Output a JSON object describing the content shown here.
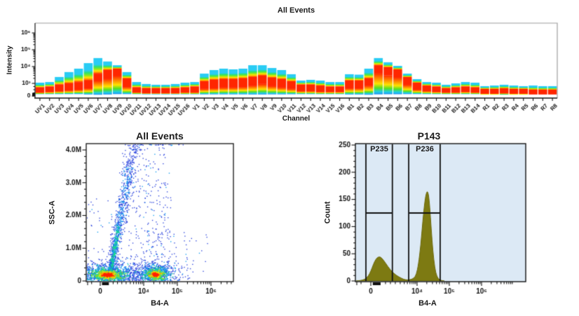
{
  "chart_data": [
    {
      "type": "spectral-band",
      "title": "All Events",
      "xlabel": "Channel",
      "ylabel": "Intensity",
      "yticks": [
        {
          "v": 0,
          "label": "0"
        },
        {
          "v": 1000,
          "label": "10³"
        },
        {
          "v": 10000,
          "label": "10⁴"
        },
        {
          "v": 100000,
          "label": "10⁵"
        },
        {
          "v": 1000000,
          "label": "10⁶"
        }
      ],
      "channels": [
        "UV1",
        "UV2",
        "UV3",
        "UV4",
        "UV5",
        "UV6",
        "UV7",
        "UV8",
        "UV9",
        "UV10",
        "UV11",
        "UV12",
        "UV13",
        "UV14",
        "UV15",
        "UV16",
        "V1",
        "V2",
        "V3",
        "V4",
        "V5",
        "V6",
        "V7",
        "V8",
        "V9",
        "V10",
        "V11",
        "V12",
        "V13",
        "V14",
        "V15",
        "V16",
        "B1",
        "B2",
        "B3",
        "B4",
        "B5",
        "B6",
        "B7",
        "B8",
        "B9",
        "B10",
        "B11",
        "B12",
        "B13",
        "B14",
        "R1",
        "R2",
        "R3",
        "R4",
        "R5",
        "R6",
        "R7",
        "R8"
      ],
      "bands": {
        "hi": [
          1100,
          1200,
          2400,
          4700,
          7500,
          16000,
          32000,
          20000,
          12000,
          4700,
          1200,
          950,
          890,
          890,
          950,
          1100,
          1200,
          3800,
          6200,
          7500,
          6800,
          7500,
          12000,
          12000,
          8200,
          6200,
          3500,
          1470,
          1620,
          1470,
          1200,
          1200,
          3500,
          3300,
          7500,
          32000,
          18000,
          11000,
          3800,
          1780,
          1200,
          1100,
          890,
          1000,
          1200,
          1100,
          780,
          830,
          890,
          830,
          780,
          830,
          780,
          780
        ],
        "red_hi": [
          680,
          750,
          900,
          1000,
          1200,
          1470,
          3800,
          6200,
          7500,
          1960,
          680,
          620,
          620,
          620,
          620,
          680,
          750,
          1330,
          1620,
          1780,
          1780,
          1960,
          2370,
          2870,
          2150,
          1780,
          1330,
          900,
          900,
          830,
          750,
          750,
          1470,
          1470,
          1960,
          12000,
          9100,
          6800,
          2370,
          1100,
          830,
          750,
          620,
          680,
          750,
          680,
          560,
          560,
          610,
          560,
          560,
          500,
          500,
          500
        ],
        "red_lo": [
          280,
          330,
          390,
          440,
          500,
          610,
          1470,
          1960,
          2870,
          720,
          280,
          220,
          220,
          220,
          220,
          280,
          280,
          560,
          610,
          670,
          670,
          720,
          830,
          950,
          780,
          670,
          560,
          390,
          390,
          330,
          330,
          330,
          610,
          610,
          830,
          4200,
          3100,
          2370,
          890,
          500,
          390,
          330,
          280,
          280,
          330,
          280,
          170,
          170,
          220,
          170,
          170,
          120,
          120,
          120
        ],
        "lo": [
          150,
          150,
          150,
          150,
          150,
          120,
          100,
          120,
          150,
          150,
          150,
          130,
          130,
          130,
          130,
          140,
          140,
          130,
          130,
          130,
          130,
          130,
          120,
          120,
          130,
          130,
          140,
          150,
          150,
          150,
          150,
          150,
          120,
          120,
          100,
          130,
          140,
          140,
          150,
          150,
          150,
          150,
          150,
          150,
          150,
          150,
          110,
          110,
          110,
          110,
          110,
          100,
          100,
          100
        ]
      },
      "palette": {
        "red": "#ff2600",
        "above": [
          [
            0,
            "#29ccf4"
          ],
          [
            0.42,
            "#29ccf4"
          ],
          [
            0.56,
            "#2de36b"
          ],
          [
            0.7,
            "#8ce81c"
          ],
          [
            0.82,
            "#ffe400"
          ],
          [
            0.93,
            "#ff9000"
          ],
          [
            1,
            "#ff2600"
          ]
        ],
        "below": [
          [
            0,
            "#ff2600"
          ],
          [
            0.28,
            "#ff9000"
          ],
          [
            0.5,
            "#ffe400"
          ],
          [
            0.7,
            "#55e022"
          ],
          [
            0.88,
            "#1fd0e8"
          ],
          [
            1,
            "#1f8ef0"
          ]
        ]
      }
    },
    {
      "type": "density-scatter",
      "title": "All Events",
      "xlabel": "B4-A",
      "ylabel": "SSC-A",
      "xticks": [
        {
          "v": 0,
          "label": "0"
        },
        {
          "v": 10000,
          "label": "10⁴"
        },
        {
          "v": 100000,
          "label": "10⁵"
        },
        {
          "v": 1000000,
          "label": "10⁶"
        }
      ],
      "yticks": [
        {
          "v": 0,
          "label": "0"
        },
        {
          "v": 1000000,
          "label": "1.0M"
        },
        {
          "v": 2000000,
          "label": "2.0M"
        },
        {
          "v": 3000000,
          "label": "3.0M"
        },
        {
          "v": 4000000,
          "label": "4.0M"
        }
      ],
      "ymax": 4200000,
      "density_palette": [
        "#2b43dd",
        "#0f9df0",
        "#19dd88",
        "#9ae010",
        "#ffdd00",
        "#ff8800",
        "#ff2200"
      ],
      "clusters": [
        {
          "cx": 800,
          "cy": 200000,
          "sx": 1050,
          "sy": 95000,
          "n": 2400
        },
        {
          "cx": 22000,
          "cy": 210000,
          "slogx": 0.16,
          "sy": 90000,
          "n": 1500
        }
      ],
      "streak": {
        "x1": 1100,
        "y1": 220000,
        "x2": 5200,
        "y2": 4300000,
        "n": 1400
      },
      "sparse": [
        {
          "x": [
            3000,
            60000
          ],
          "y": [
            200000,
            4250000
          ],
          "n": 240,
          "log": true
        },
        {
          "x": [
            12000,
            60000
          ],
          "y": [
            300000,
            1600000
          ],
          "n": 60,
          "log": true
        },
        {
          "x": [
            1500,
            9000
          ],
          "y": [
            10000,
            300000
          ],
          "n": 70,
          "log": true
        },
        {
          "x": [
            40000,
            900000
          ],
          "y": [
            10000,
            1500000
          ],
          "n": 45,
          "log": true
        },
        {
          "x": [
            6000,
            150000
          ],
          "y": [
            4150000,
            4280000
          ],
          "n": 55,
          "log": true
        },
        {
          "x": [
            -1500,
            3000
          ],
          "y": [
            150000,
            2600000
          ],
          "n": 60,
          "log": false
        }
      ]
    },
    {
      "type": "histogram",
      "title": "P143",
      "xlabel": "B4-A",
      "ylabel": "Count",
      "xticks": [
        {
          "v": 0,
          "label": "0"
        },
        {
          "v": 10000,
          "label": "10⁴"
        },
        {
          "v": 100000,
          "label": "10⁵"
        },
        {
          "v": 1000000,
          "label": "10⁶"
        }
      ],
      "yticks": [
        {
          "v": 0,
          "label": "0"
        },
        {
          "v": 50,
          "label": "50"
        },
        {
          "v": 100,
          "label": "100"
        },
        {
          "v": 150,
          "label": "150"
        },
        {
          "v": 200,
          "label": "200"
        },
        {
          "v": 250,
          "label": "250"
        }
      ],
      "ymax": 250,
      "colors": {
        "background": "#dce9f5",
        "fill": "#7d7a12",
        "stroke": "#6b6708",
        "gate": "#111111"
      },
      "curve": [
        [
          -1500,
          0
        ],
        [
          -1000,
          1
        ],
        [
          -600,
          3
        ],
        [
          -250,
          9
        ],
        [
          0,
          18
        ],
        [
          250,
          30
        ],
        [
          500,
          40
        ],
        [
          800,
          45
        ],
        [
          1100,
          43
        ],
        [
          1500,
          33
        ],
        [
          2000,
          20
        ],
        [
          2600,
          10
        ],
        [
          3300,
          5
        ],
        [
          4200,
          2
        ],
        [
          6000,
          2
        ],
        [
          8000,
          5
        ],
        [
          9500,
          12
        ],
        [
          11000,
          30
        ],
        [
          13000,
          65
        ],
        [
          15000,
          110
        ],
        [
          17500,
          148
        ],
        [
          19500,
          163
        ],
        [
          21500,
          165
        ],
        [
          23500,
          152
        ],
        [
          26000,
          118
        ],
        [
          29000,
          75
        ],
        [
          33000,
          38
        ],
        [
          38000,
          14
        ],
        [
          45000,
          4
        ],
        [
          55000,
          1
        ],
        [
          70000,
          0
        ]
      ],
      "gates": [
        {
          "label": "P235",
          "from": -500,
          "to": 2200,
          "crossbar_count": 125
        },
        {
          "label": "P236",
          "from": 5500,
          "to": 52000,
          "crossbar_count": 125
        }
      ]
    }
  ]
}
